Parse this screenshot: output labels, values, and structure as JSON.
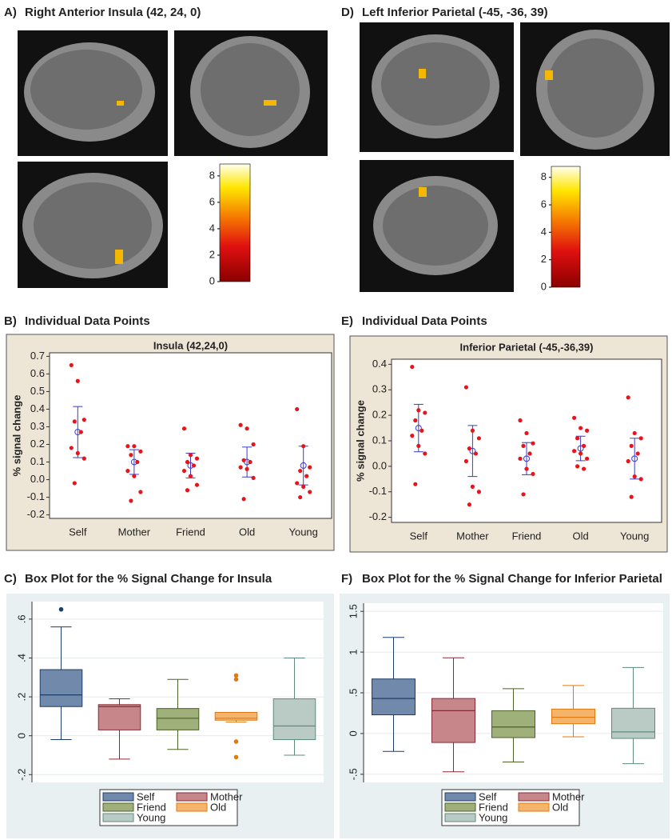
{
  "chart_data": [
    {
      "type": "colorbar",
      "panel_label": "A)",
      "title": "Right Anterior Insula (42, 24, 0)",
      "ylim": [
        0,
        8.9
      ],
      "yticks": [
        0,
        2,
        4,
        6,
        8
      ]
    },
    {
      "type": "colorbar",
      "panel_label": "D)",
      "title": "Left Inferior Parietal (-45, -36, 39)",
      "ylim": [
        0,
        8.8
      ],
      "yticks": [
        0,
        2,
        4,
        6,
        8
      ]
    },
    {
      "type": "strip",
      "panel_label": "B)",
      "title": "Individual Data Points",
      "subtitle": "Insula (42,24,0)",
      "y_label": "% signal change",
      "categories": [
        "Self",
        "Mother",
        "Friend",
        "Old",
        "Young"
      ],
      "points": [
        [
          0.65,
          0.56,
          0.34,
          0.33,
          0.27,
          0.18,
          0.15,
          0.12,
          -0.02
        ],
        [
          0.19,
          0.19,
          0.16,
          0.14,
          0.1,
          0.05,
          0.02,
          -0.07,
          -0.12
        ],
        [
          0.29,
          0.14,
          0.12,
          0.1,
          0.08,
          0.05,
          0.02,
          -0.03,
          -0.06
        ],
        [
          0.31,
          0.29,
          0.2,
          0.11,
          0.1,
          0.07,
          0.06,
          0.01,
          -0.11
        ],
        [
          0.4,
          0.19,
          0.07,
          0.05,
          0.02,
          -0.02,
          -0.04,
          -0.07,
          -0.1
        ]
      ],
      "means": [
        0.27,
        0.1,
        0.08,
        0.1,
        0.08
      ],
      "errors": [
        0.145,
        0.07,
        0.07,
        0.085,
        0.11
      ],
      "point_color": "#e8141c",
      "mean_color": "#3a3ad0",
      "ylim": [
        -0.22,
        0.72
      ],
      "yticks": [
        -0.2,
        -0.1,
        {
          "value": 0,
          "label": "0.0"
        },
        0.1,
        0.2,
        0.3,
        0.4,
        0.5,
        0.6,
        0.7
      ]
    },
    {
      "type": "strip",
      "panel_label": "E)",
      "title": "Individual Data Points",
      "subtitle": "Inferior Parietal (-45,-36,39)",
      "y_label": "% signal change",
      "categories": [
        "Self",
        "Mother",
        "Friend",
        "Old",
        "Young"
      ],
      "points": [
        [
          0.39,
          0.22,
          0.21,
          0.18,
          0.14,
          0.12,
          0.08,
          0.05,
          -0.07
        ],
        [
          0.31,
          0.14,
          0.11,
          0.07,
          0.05,
          0.02,
          -0.08,
          -0.1,
          -0.15
        ],
        [
          0.18,
          0.13,
          0.09,
          0.08,
          0.05,
          0.03,
          -0.01,
          -0.03,
          -0.11
        ],
        [
          0.19,
          0.15,
          0.14,
          0.11,
          0.08,
          0.06,
          0.05,
          0.03,
          0.0,
          -0.01
        ],
        [
          0.27,
          0.13,
          0.11,
          0.08,
          0.05,
          0.02,
          -0.04,
          -0.05,
          -0.12
        ]
      ],
      "means": [
        0.15,
        0.06,
        0.03,
        0.07,
        0.03
      ],
      "errors": [
        0.093,
        0.1,
        0.063,
        0.048,
        0.08
      ],
      "point_color": "#e8141c",
      "mean_color": "#3a3ad0",
      "ylim": [
        -0.22,
        0.42
      ],
      "yticks": [
        -0.2,
        -0.1,
        {
          "value": 0,
          "label": "0.0"
        },
        0.1,
        0.2,
        0.3,
        0.4
      ]
    },
    {
      "type": "box",
      "panel_label": "C)",
      "title": "Box Plot for the % Signal Change for Insula",
      "categories": [
        "Self",
        "Mother",
        "Friend",
        "Old",
        "Young"
      ],
      "colors": [
        "#7189aa",
        "#c7868a",
        "#9fb07a",
        "#f5b46c",
        "#b9cbc4"
      ],
      "edge_colors": [
        "#1d3d6b",
        "#8a2a35",
        "#4b6226",
        "#e07a10",
        "#5f8a7e"
      ],
      "whisker_low": [
        -0.02,
        -0.12,
        -0.07,
        0.07,
        -0.1
      ],
      "q1": [
        0.15,
        0.03,
        0.03,
        0.08,
        -0.02
      ],
      "median": [
        0.21,
        0.15,
        0.09,
        0.09,
        0.05
      ],
      "q3": [
        0.34,
        0.16,
        0.14,
        0.12,
        0.19
      ],
      "whisker_high": [
        0.56,
        0.19,
        0.29,
        0.12,
        0.4
      ],
      "outliers": [
        [
          0.65
        ],
        [],
        [],
        [
          0.31,
          0.29,
          -0.03,
          -0.11
        ],
        []
      ],
      "ylim": [
        -0.24,
        0.69
      ],
      "yticks": [
        {
          "value": -0.2,
          "label": "-.2"
        },
        0,
        {
          "value": 0.2,
          "label": ".2"
        },
        {
          "value": 0.4,
          "label": ".4"
        },
        {
          "value": 0.6,
          "label": ".6"
        }
      ],
      "grid": true
    },
    {
      "type": "box",
      "panel_label": "F)",
      "title": "Box Plot for the % Signal Change for Inferior Parietal",
      "categories": [
        "Self",
        "Mother",
        "Friend",
        "Old",
        "Young"
      ],
      "colors": [
        "#7189aa",
        "#c7868a",
        "#9fb07a",
        "#f5b46c",
        "#b9cbc4"
      ],
      "edge_colors": [
        "#1d3d6b",
        "#8a2a35",
        "#4b6226",
        "#e07a10",
        "#5f8a7e"
      ],
      "whisker_low": [
        -0.22,
        -0.47,
        -0.35,
        -0.04,
        -0.37
      ],
      "q1": [
        0.23,
        -0.11,
        -0.05,
        0.12,
        -0.06
      ],
      "median": [
        0.43,
        0.28,
        0.08,
        0.2,
        0.02
      ],
      "q3": [
        0.67,
        0.43,
        0.28,
        0.3,
        0.31
      ],
      "whisker_high": [
        1.18,
        0.93,
        0.55,
        0.59,
        0.81
      ],
      "ylim": [
        -0.6,
        1.6
      ],
      "yticks": [
        {
          "value": -0.5,
          "label": "-.5"
        },
        0,
        {
          "value": 0.5,
          "label": ".5"
        },
        1,
        1.5
      ],
      "grid": true
    }
  ]
}
